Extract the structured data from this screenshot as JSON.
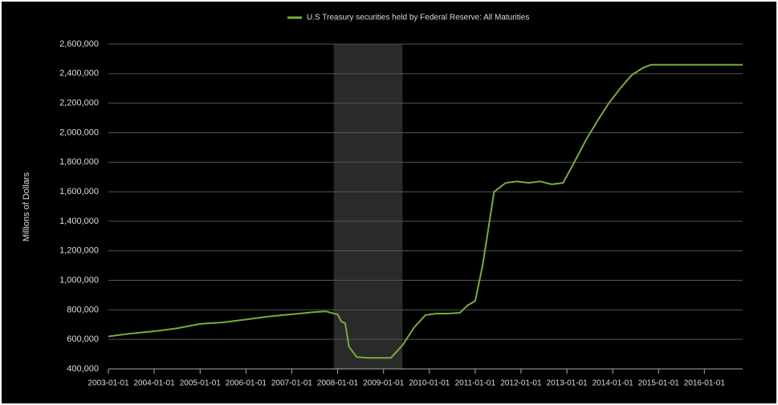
{
  "chart_data": {
    "type": "line",
    "y_label": "Millions of Dollars",
    "x": [
      "2003-01-01",
      "2003-07-01",
      "2004-01-01",
      "2004-07-01",
      "2005-01-01",
      "2005-07-01",
      "2006-01-01",
      "2006-07-01",
      "2007-01-01",
      "2007-07-01",
      "2007-10-01",
      "2007-12-01",
      "2008-01-01",
      "2008-02-01",
      "2008-03-01",
      "2008-04-01",
      "2008-06-01",
      "2008-09-01",
      "2008-12-01",
      "2009-03-01",
      "2009-06-01",
      "2009-09-01",
      "2009-12-01",
      "2010-03-01",
      "2010-06-01",
      "2010-09-01",
      "2010-11-01",
      "2011-01-01",
      "2011-03-01",
      "2011-06-01",
      "2011-09-01",
      "2011-12-01",
      "2012-03-01",
      "2012-06-01",
      "2012-09-01",
      "2012-12-01",
      "2013-03-01",
      "2013-06-01",
      "2013-09-01",
      "2013-12-01",
      "2014-03-01",
      "2014-06-01",
      "2014-09-01",
      "2014-11-01",
      "2015-06-01",
      "2016-01-01",
      "2016-11-01"
    ],
    "series": [
      {
        "name": "U.S Treasury securities held by Federal Reserve: All Maturities",
        "color": "#7aab3b",
        "values": [
          620000,
          640000,
          655000,
          675000,
          705000,
          715000,
          735000,
          755000,
          770000,
          785000,
          790000,
          775000,
          770000,
          720000,
          710000,
          550000,
          480000,
          475000,
          475000,
          475000,
          560000,
          680000,
          765000,
          775000,
          775000,
          780000,
          830000,
          860000,
          1100000,
          1600000,
          1660000,
          1670000,
          1660000,
          1670000,
          1650000,
          1660000,
          1800000,
          1950000,
          2080000,
          2200000,
          2300000,
          2390000,
          2440000,
          2460000,
          2460000,
          2460000,
          2460000
        ]
      }
    ],
    "xlim": [
      "2003-01-01",
      "2016-11-01"
    ],
    "xticks": [
      "2003-01-01",
      "2004-01-01",
      "2005-01-01",
      "2006-01-01",
      "2007-01-01",
      "2008-01-01",
      "2009-01-01",
      "2010-01-01",
      "2011-01-01",
      "2012-01-01",
      "2013-01-01",
      "2014-01-01",
      "2015-01-01",
      "2016-01-01"
    ],
    "ylim": [
      400000,
      2600000
    ],
    "yticks": [
      {
        "value": 400000,
        "label": "400,000"
      },
      {
        "value": 600000,
        "label": "600,000"
      },
      {
        "value": 800000,
        "label": "800,000"
      },
      {
        "value": 1000000,
        "label": "1,000,000"
      },
      {
        "value": 1200000,
        "label": "1,200,000"
      },
      {
        "value": 1400000,
        "label": "1,400,000"
      },
      {
        "value": 1600000,
        "label": "1,600,000"
      },
      {
        "value": 1800000,
        "label": "1,800,000"
      },
      {
        "value": 2000000,
        "label": "2,000,000"
      },
      {
        "value": 2200000,
        "label": "2,200,000"
      },
      {
        "value": 2400000,
        "label": "2,400,000"
      },
      {
        "value": 2600000,
        "label": "2,600,000"
      }
    ],
    "grid": true,
    "shaded_region": [
      "2007-12-01",
      "2009-06-01"
    ],
    "legend": "top"
  }
}
